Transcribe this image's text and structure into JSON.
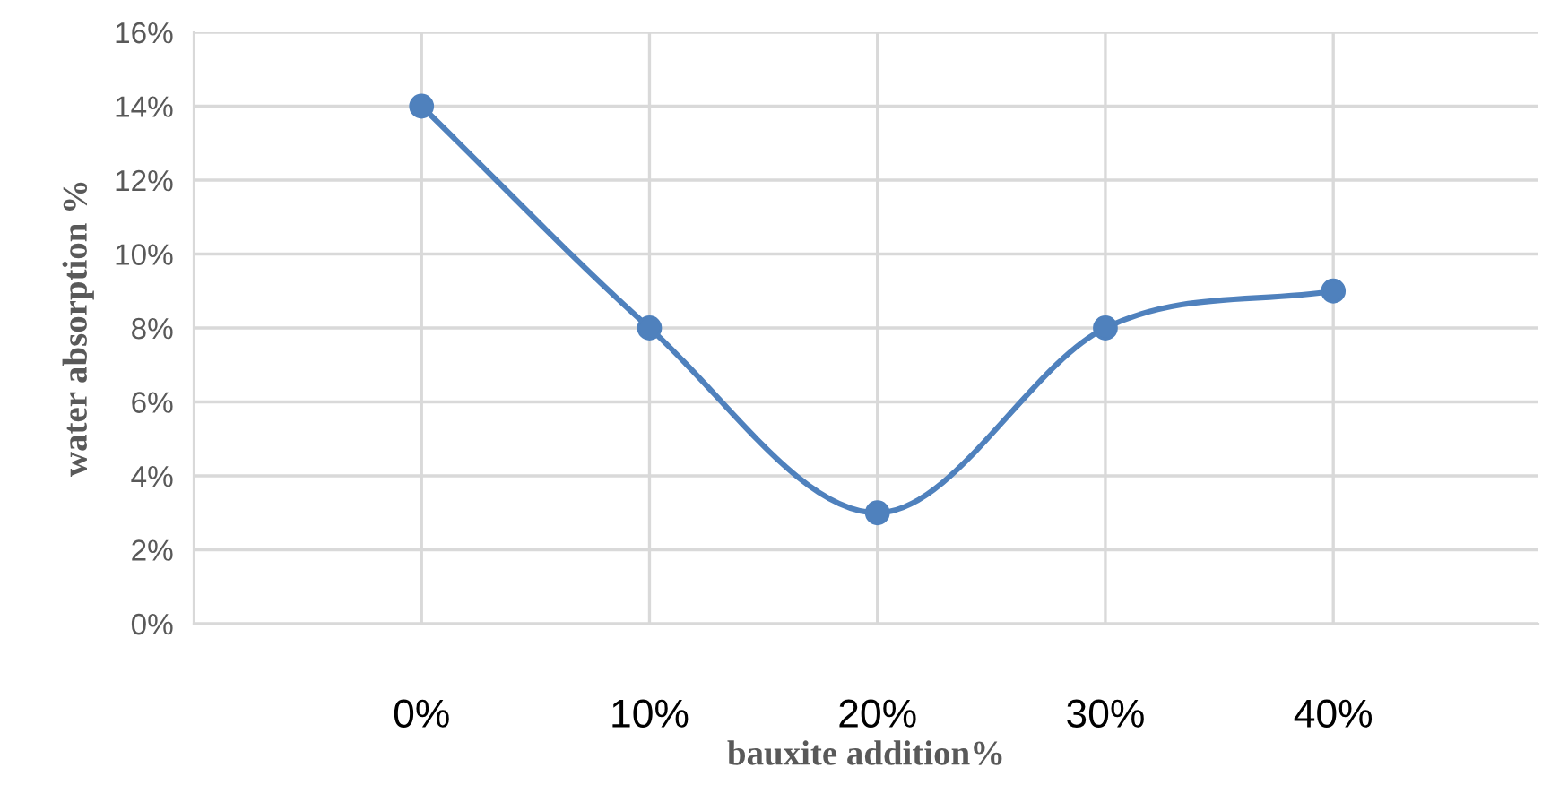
{
  "chart_data": {
    "type": "line",
    "xlabel": "bauxite addition%",
    "ylabel": "water absorption %",
    "x": [
      0,
      10,
      20,
      30,
      40
    ],
    "series": [
      {
        "color": "#4f81bd",
        "values": [
          14,
          8,
          3,
          8,
          9
        ]
      }
    ],
    "xlim": [
      -10,
      49
    ],
    "xticks": [
      {
        "value": 0,
        "label": "0%"
      },
      {
        "value": 10,
        "label": "10%"
      },
      {
        "value": 20,
        "label": "20%"
      },
      {
        "value": 30,
        "label": "30%"
      },
      {
        "value": 40,
        "label": "40%"
      }
    ],
    "ylim": [
      0,
      16
    ],
    "yticks": [
      {
        "value": 0,
        "label": "0%"
      },
      {
        "value": 2,
        "label": "2%"
      },
      {
        "value": 4,
        "label": "4%"
      },
      {
        "value": 6,
        "label": "6%"
      },
      {
        "value": 8,
        "label": "8%"
      },
      {
        "value": 10,
        "label": "10%"
      },
      {
        "value": 12,
        "label": "12%"
      },
      {
        "value": 14,
        "label": "14%"
      },
      {
        "value": 16,
        "label": "16%"
      }
    ],
    "grid": true,
    "marker": "circle",
    "line_style": "solid"
  }
}
